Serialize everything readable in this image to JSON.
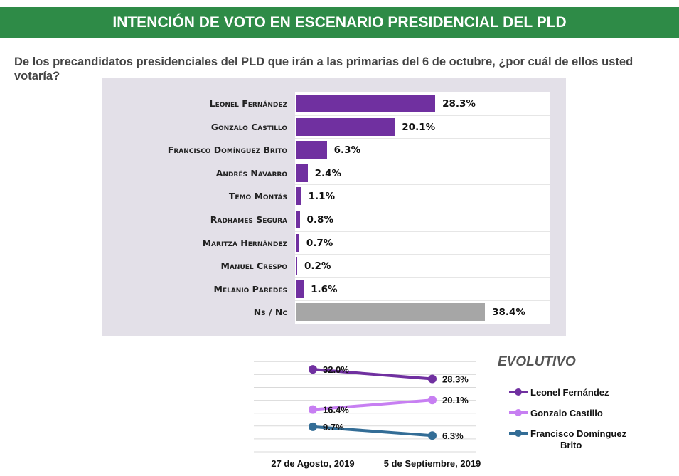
{
  "header": {
    "title": "INTENCIÓN DE VOTO EN ESCENARIO PRESIDENCIAL DEL PLD"
  },
  "question": "De los precandidatos presidenciales del PLD que irán a las primarias del 6 de octubre, ¿por cuál de ellos usted votaría?",
  "chart_data": [
    {
      "type": "bar",
      "orientation": "horizontal",
      "categories": [
        "Leonel Fernández",
        "Gonzalo Castillo",
        "Francisco Domínguez Brito",
        "Andrés Navarro",
        "Temo Montás",
        "Radhames Segura",
        "Maritza Hernández",
        "Manuel Crespo",
        "Melanio Paredes",
        "Ns / Nc"
      ],
      "values": [
        28.3,
        20.1,
        6.3,
        2.4,
        1.1,
        0.8,
        0.7,
        0.2,
        1.6,
        38.4
      ],
      "labels": [
        "28.3%",
        "20.1%",
        "6.3%",
        "2.4%",
        "1.1%",
        "0.8%",
        "0.7%",
        "0.2%",
        "1.6%",
        "38.4%"
      ],
      "colors": [
        "#7030a0",
        "#7030a0",
        "#7030a0",
        "#7030a0",
        "#7030a0",
        "#7030a0",
        "#7030a0",
        "#7030a0",
        "#7030a0",
        "#a6a6a6"
      ],
      "xlim": [
        0,
        50
      ]
    },
    {
      "type": "line",
      "title": "EVOLUTIVO",
      "categories": [
        "27 de Agosto, 2019",
        "5 de Septiembre, 2019"
      ],
      "series": [
        {
          "name": "Leonel Fernández",
          "values": [
            32.0,
            28.3
          ],
          "labels": [
            "32.0%",
            "28.3%"
          ],
          "color": "#7030a0"
        },
        {
          "name": "Gonzalo Castillo",
          "values": [
            16.4,
            20.1
          ],
          "labels": [
            "16.4%",
            "20.1%"
          ],
          "color": "#c77ff2"
        },
        {
          "name": "Francisco Domínguez Brito",
          "values": [
            9.7,
            6.3
          ],
          "labels": [
            "9.7%",
            "6.3%"
          ],
          "color": "#336d96"
        }
      ],
      "ylim": [
        0,
        35
      ],
      "grid": true,
      "legend": "right"
    }
  ]
}
